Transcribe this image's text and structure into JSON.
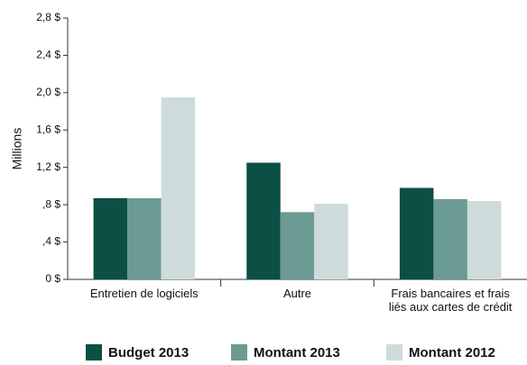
{
  "chart_data": {
    "type": "bar",
    "y_label": "Millions",
    "categories": [
      "Entretien de logiciels",
      "Autre",
      "Frais bancaires et frais liés aux cartes de crédit"
    ],
    "series": [
      {
        "name": "Budget 2013",
        "color": "#0b4f45",
        "values": [
          0.87,
          1.25,
          0.98
        ]
      },
      {
        "name": "Montant 2013",
        "color": "#6b9b92",
        "values": [
          0.87,
          0.72,
          0.86
        ]
      },
      {
        "name": "Montant 2012",
        "color": "#cddcdb",
        "values": [
          1.95,
          0.81,
          0.84
        ]
      }
    ],
    "ylim": [
      0,
      2.8
    ],
    "yticks": [
      {
        "value": 0,
        "label": "0 $"
      },
      {
        "value": 0.4,
        "label": ",4 $"
      },
      {
        "value": 0.8,
        "label": ",8 $"
      },
      {
        "value": 1.2,
        "label": "1,2 $"
      },
      {
        "value": 1.6,
        "label": "1,6 $"
      },
      {
        "value": 2.0,
        "label": "2,0 $"
      },
      {
        "value": 2.4,
        "label": "2,4 $"
      },
      {
        "value": 2.8,
        "label": "2,8 $"
      }
    ],
    "legend": "bottom"
  }
}
